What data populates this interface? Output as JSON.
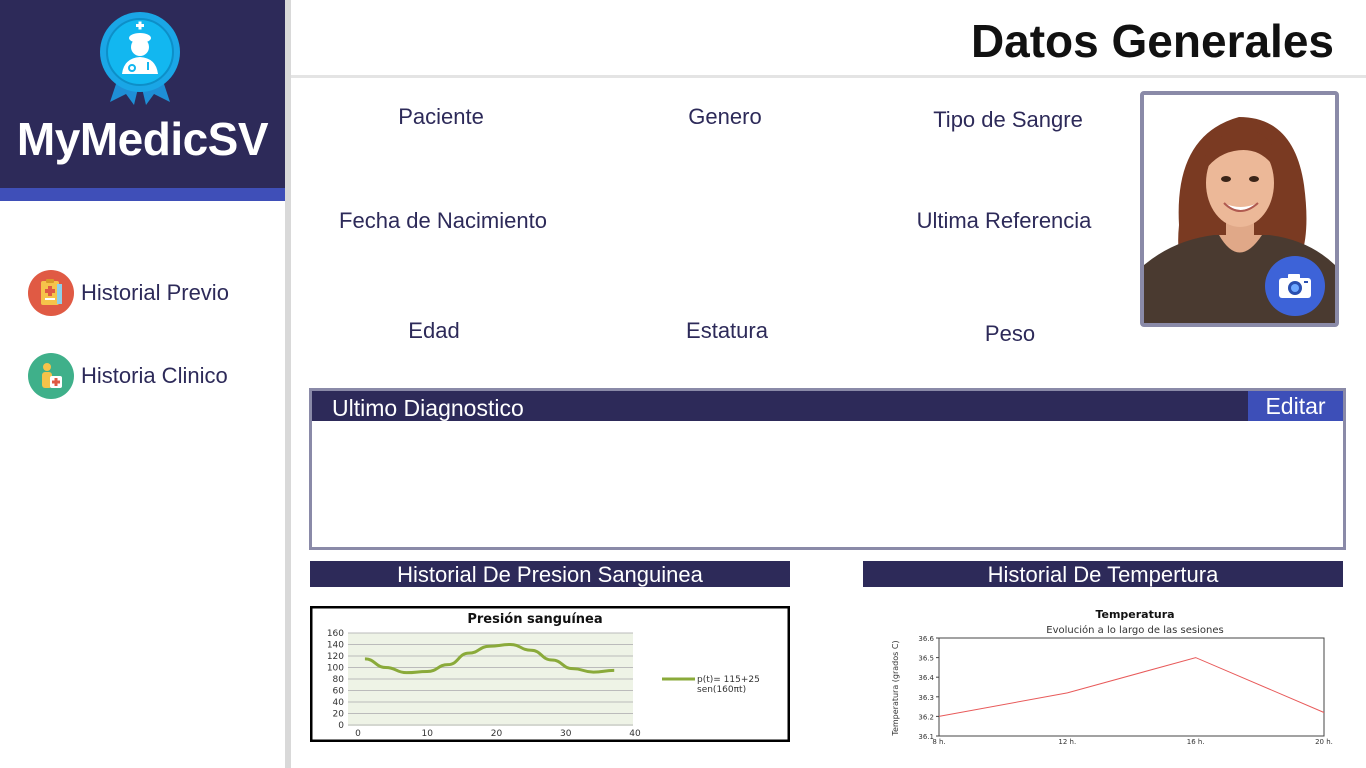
{
  "app": {
    "name": "MyMedicSV",
    "logo_icon": "medic-badge-icon"
  },
  "colors": {
    "sidebar_bg": "#2d2a59",
    "accent_strip": "#3f4fb8",
    "edit_button": "#3d4fb8",
    "historial_icon_bg": "#e05a44",
    "clinico_icon_bg": "#3fb08a",
    "camera_bg": "#3d63d8"
  },
  "sidebar": {
    "items": [
      {
        "label": "Historial Previo",
        "icon": "medical-record-icon"
      },
      {
        "label": "Historia Clinico",
        "icon": "patient-clinic-icon"
      }
    ]
  },
  "header": {
    "title": "Datos Generales"
  },
  "fields": {
    "paciente": "Paciente",
    "genero": "Genero",
    "tipo_sangre": "Tipo de Sangre",
    "fecha_nacimiento": "Fecha de Nacimiento",
    "ultima_referencia": "Ultima Referencia",
    "edad": "Edad",
    "estatura": "Estatura",
    "peso": "Peso"
  },
  "photo": {
    "camera_icon": "camera-icon"
  },
  "diagnostico": {
    "title": "Ultimo Diagnostico",
    "edit_label": "Editar"
  },
  "sections": {
    "presion": "Historial De Presion Sanguinea",
    "temperatura": "Historial De Tempertura"
  },
  "chart_data": [
    {
      "type": "line",
      "title": "Presión sanguínea",
      "xlabel": "",
      "ylabel": "",
      "xlim": [
        0,
        40
      ],
      "ylim": [
        0,
        160
      ],
      "xticks": [
        "0",
        "10",
        "20",
        "30",
        "40"
      ],
      "yticks": [
        "0",
        "20",
        "40",
        "60",
        "80",
        "100",
        "120",
        "140",
        "160"
      ],
      "series": [
        {
          "name": "p(t)= 115+25 sen(160πt)",
          "color": "#8aaa3a",
          "x": [
            1,
            4,
            7,
            10,
            13,
            16,
            19,
            22,
            25,
            28,
            31,
            34,
            37
          ],
          "y": [
            115,
            100,
            91,
            93,
            105,
            125,
            137,
            140,
            130,
            113,
            98,
            92,
            95
          ]
        }
      ],
      "grid": true,
      "legend": "right"
    },
    {
      "type": "line",
      "title": "Temperatura",
      "subtitle": "Evolución a lo largo de las sesiones",
      "xlabel": "",
      "ylabel": "Temperatura (grados C)",
      "categories": [
        "8 h.",
        "12 h.",
        "16 h.",
        "20 h."
      ],
      "ylim": [
        36.1,
        36.6
      ],
      "yticks": [
        "36.1",
        "36.2",
        "36.3",
        "36.4",
        "36.5",
        "36.6"
      ],
      "series": [
        {
          "color": "#e85a5a",
          "values": [
            36.2,
            36.32,
            36.5,
            36.22
          ]
        }
      ],
      "grid": false
    }
  ]
}
